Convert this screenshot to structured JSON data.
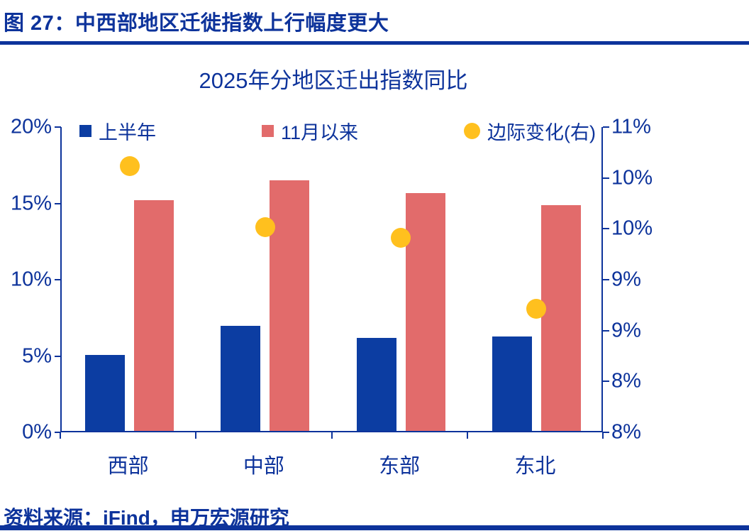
{
  "figure": {
    "title": "图 27：中西部地区迁徙指数上行幅度更大"
  },
  "source": {
    "text": "资料来源：iFind，申万宏源研究"
  },
  "colors": {
    "navy": "#0D339B",
    "bar_blue": "#0C3DA2",
    "bar_red": "#E26B6B",
    "dot_yellow": "#FFC01E"
  },
  "chart_data": {
    "type": "bar",
    "subtype": "grouped-bar-with-scatter-dual-axis",
    "title": "2025年分地区迁出指数同比",
    "categories": [
      "西部",
      "中部",
      "东部",
      "东北"
    ],
    "series": [
      {
        "name": "上半年",
        "type": "bar",
        "axis": "left",
        "values": [
          5.0,
          6.9,
          6.1,
          6.2
        ]
      },
      {
        "name": "11月以来",
        "type": "bar",
        "axis": "left",
        "values": [
          15.1,
          16.4,
          15.6,
          14.8
        ]
      },
      {
        "name": "边际变化(右)",
        "type": "scatter",
        "axis": "right",
        "values": [
          10.6,
          10.0,
          9.9,
          9.2
        ]
      }
    ],
    "left_axis": {
      "min": 0,
      "max": 20,
      "unit": "%",
      "tick_labels": [
        "20%",
        "15%",
        "10%",
        "5%",
        "0%"
      ]
    },
    "right_axis": {
      "min": 8,
      "max": 11,
      "unit": "%",
      "tick_labels": [
        "11%",
        "10%",
        "10%",
        "9%",
        "9%",
        "8%",
        "8%"
      ]
    },
    "legend_position": "top",
    "grid": false
  }
}
